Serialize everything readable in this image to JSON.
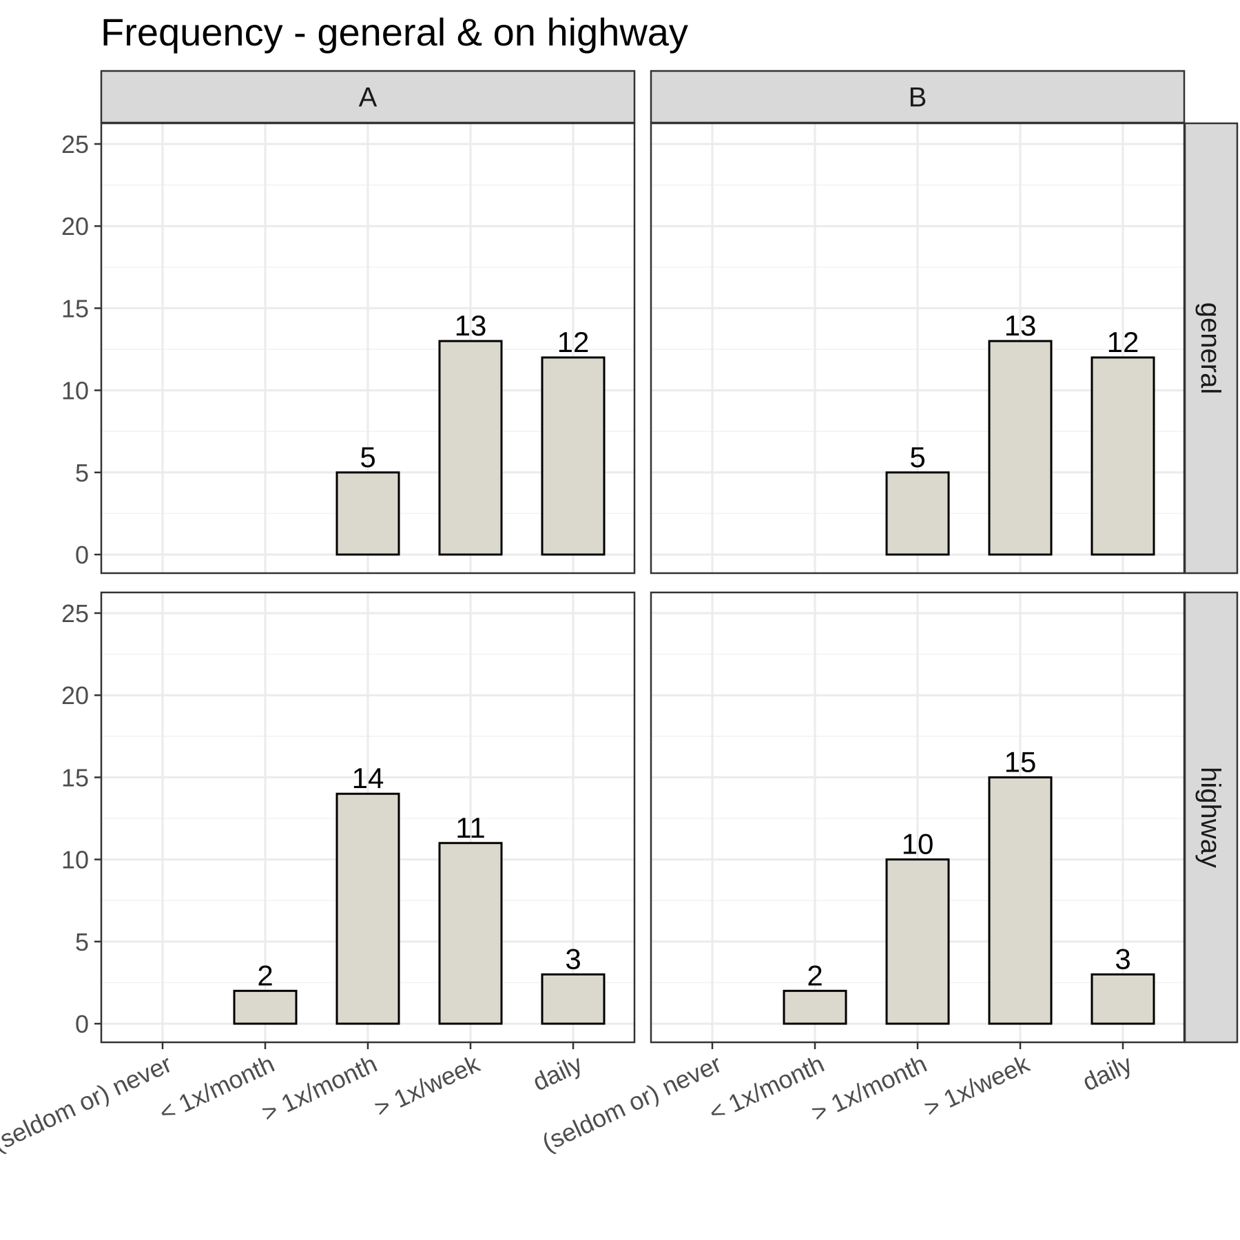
{
  "chart_data": {
    "type": "bar",
    "title": "Frequency - general & on highway",
    "xlabel": "",
    "ylabel": "",
    "ylim": [
      0,
      26
    ],
    "y_ticks": [
      0,
      5,
      10,
      15,
      20,
      25
    ],
    "categories": [
      "(seldom or) never",
      "< 1x/month",
      "> 1x/month",
      "> 1x/week",
      "daily"
    ],
    "facet_columns": [
      "A",
      "B"
    ],
    "facet_rows": [
      "general",
      "highway"
    ],
    "grid": true,
    "bar_fill": "#dbd9cd",
    "bar_stroke": "#000000",
    "panels": [
      {
        "column": "A",
        "row": "general",
        "values": [
          null,
          null,
          5,
          13,
          12
        ]
      },
      {
        "column": "B",
        "row": "general",
        "values": [
          null,
          null,
          5,
          13,
          12
        ]
      },
      {
        "column": "A",
        "row": "highway",
        "values": [
          null,
          2,
          14,
          11,
          3
        ]
      },
      {
        "column": "B",
        "row": "highway",
        "values": [
          null,
          2,
          10,
          15,
          3
        ]
      }
    ]
  }
}
